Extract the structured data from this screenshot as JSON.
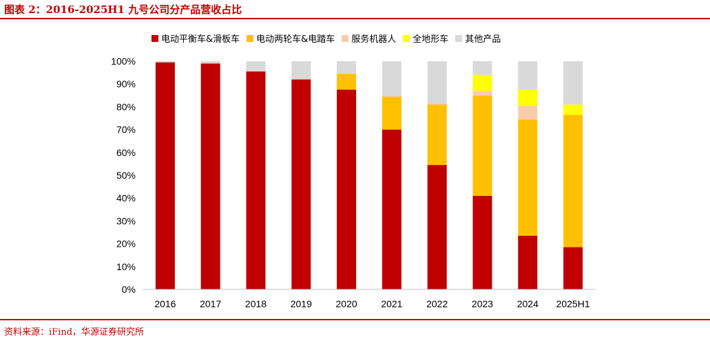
{
  "title": "图表 2：2016-2025H1 九号公司分产品营收占比",
  "source": "资料来源：iFind，华源证券研究所",
  "colors": {
    "accent": "#c00000",
    "series": [
      "#c00000",
      "#ffc000",
      "#f8cbad",
      "#ffff00",
      "#d9d9d9"
    ]
  },
  "chart_data": {
    "type": "bar",
    "stacked": true,
    "categories": [
      "2016",
      "2017",
      "2018",
      "2019",
      "2020",
      "2021",
      "2022",
      "2023",
      "2024",
      "2025H1"
    ],
    "series": [
      {
        "name": "电动平衡车&滑板车",
        "values": [
          99.5,
          99,
          95.5,
          92,
          87.5,
          70,
          54.5,
          41,
          23.5,
          18.5
        ]
      },
      {
        "name": "电动两轮车&电踏车",
        "values": [
          0,
          0,
          0,
          0,
          7,
          14.5,
          26.5,
          44,
          51,
          58
        ]
      },
      {
        "name": "服务机器人",
        "values": [
          0,
          0,
          0,
          0,
          0,
          0,
          0.5,
          2,
          6,
          0
        ]
      },
      {
        "name": "全地形车",
        "values": [
          0,
          0,
          0,
          0,
          0,
          0,
          0,
          7,
          7,
          4.5
        ]
      },
      {
        "name": "其他产品",
        "values": [
          0.5,
          1,
          4.5,
          8,
          5.5,
          15.5,
          18.5,
          6,
          12.5,
          19
        ]
      }
    ],
    "y_ticks": [
      "0%",
      "10%",
      "20%",
      "30%",
      "40%",
      "50%",
      "60%",
      "70%",
      "80%",
      "90%",
      "100%"
    ],
    "ylim": [
      0,
      100
    ],
    "legend_position": "top",
    "grid": false
  }
}
